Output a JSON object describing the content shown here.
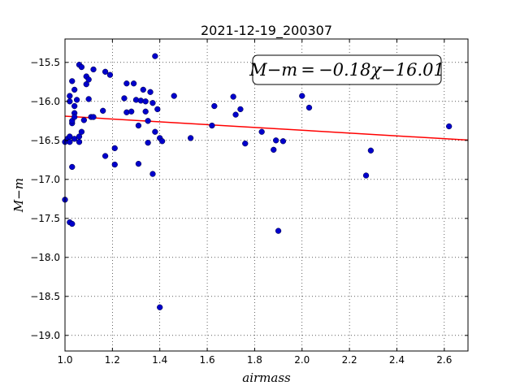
{
  "chart_data": {
    "type": "scatter",
    "title": "2021-12-19_200307",
    "xlabel": "airmass",
    "ylabel": "M−m",
    "xlim": [
      1.0,
      2.7
    ],
    "ylim": [
      -15.2,
      -19.2
    ],
    "y_inverted": true,
    "grid": true,
    "grid_style": "dotted",
    "x_ticks": [
      1.0,
      1.2,
      1.4,
      1.6,
      1.8,
      2.0,
      2.2,
      2.4,
      2.6
    ],
    "x_tick_labels": [
      "1.0",
      "1.2",
      "1.4",
      "1.6",
      "1.8",
      "2.0",
      "2.2",
      "2.4",
      "2.6"
    ],
    "y_ticks": [
      -15.5,
      -16.0,
      -16.5,
      -17.0,
      -17.5,
      -18.0,
      -18.5,
      -19.0
    ],
    "y_tick_labels": [
      "−15.5",
      "−16.0",
      "−16.5",
      "−17.0",
      "−17.5",
      "−18.0",
      "−18.5",
      "−19.0"
    ],
    "annotation": "M−m = −0.18χ−16.01",
    "fit_line": {
      "slope": -0.18,
      "intercept": -16.01,
      "color": "#ff0000"
    },
    "point_color": "#0000cc",
    "points": [
      [
        1.0,
        -17.26
      ],
      [
        1.0,
        -16.52
      ],
      [
        1.01,
        -16.48
      ],
      [
        1.02,
        -17.55
      ],
      [
        1.02,
        -16.0
      ],
      [
        1.02,
        -15.93
      ],
      [
        1.02,
        -16.45
      ],
      [
        1.02,
        -16.52
      ],
      [
        1.03,
        -17.57
      ],
      [
        1.03,
        -16.84
      ],
      [
        1.03,
        -16.28
      ],
      [
        1.03,
        -16.25
      ],
      [
        1.03,
        -15.74
      ],
      [
        1.04,
        -16.06
      ],
      [
        1.04,
        -16.15
      ],
      [
        1.04,
        -16.2
      ],
      [
        1.04,
        -15.85
      ],
      [
        1.04,
        -16.48
      ],
      [
        1.05,
        -15.98
      ],
      [
        1.06,
        -16.52
      ],
      [
        1.06,
        -16.45
      ],
      [
        1.06,
        -15.53
      ],
      [
        1.07,
        -16.39
      ],
      [
        1.07,
        -15.56
      ],
      [
        1.08,
        -16.24
      ],
      [
        1.09,
        -15.78
      ],
      [
        1.09,
        -15.68
      ],
      [
        1.1,
        -15.97
      ],
      [
        1.1,
        -15.72
      ],
      [
        1.11,
        -16.2
      ],
      [
        1.12,
        -16.2
      ],
      [
        1.12,
        -15.59
      ],
      [
        1.16,
        -16.12
      ],
      [
        1.17,
        -16.7
      ],
      [
        1.17,
        -15.62
      ],
      [
        1.19,
        -15.66
      ],
      [
        1.21,
        -16.81
      ],
      [
        1.21,
        -16.6
      ],
      [
        1.25,
        -15.96
      ],
      [
        1.26,
        -15.77
      ],
      [
        1.26,
        -16.14
      ],
      [
        1.28,
        -16.13
      ],
      [
        1.29,
        -15.77
      ],
      [
        1.3,
        -15.98
      ],
      [
        1.31,
        -16.31
      ],
      [
        1.31,
        -16.8
      ],
      [
        1.32,
        -15.99
      ],
      [
        1.33,
        -15.85
      ],
      [
        1.34,
        -16.13
      ],
      [
        1.34,
        -16.0
      ],
      [
        1.35,
        -16.25
      ],
      [
        1.35,
        -16.53
      ],
      [
        1.36,
        -15.88
      ],
      [
        1.37,
        -16.93
      ],
      [
        1.37,
        -16.02
      ],
      [
        1.38,
        -16.39
      ],
      [
        1.38,
        -15.42
      ],
      [
        1.39,
        -16.1
      ],
      [
        1.4,
        -18.64
      ],
      [
        1.4,
        -16.47
      ],
      [
        1.41,
        -16.51
      ],
      [
        1.46,
        -15.93
      ],
      [
        1.53,
        -16.47
      ],
      [
        1.62,
        -16.31
      ],
      [
        1.63,
        -16.06
      ],
      [
        1.71,
        -15.94
      ],
      [
        1.72,
        -16.17
      ],
      [
        1.74,
        -16.1
      ],
      [
        1.76,
        -16.54
      ],
      [
        1.83,
        -16.39
      ],
      [
        1.88,
        -16.62
      ],
      [
        1.89,
        -16.5
      ],
      [
        1.9,
        -17.66
      ],
      [
        1.92,
        -16.51
      ],
      [
        2.0,
        -15.93
      ],
      [
        2.03,
        -16.08
      ],
      [
        2.27,
        -16.95
      ],
      [
        2.29,
        -16.63
      ],
      [
        2.62,
        -16.32
      ]
    ]
  }
}
